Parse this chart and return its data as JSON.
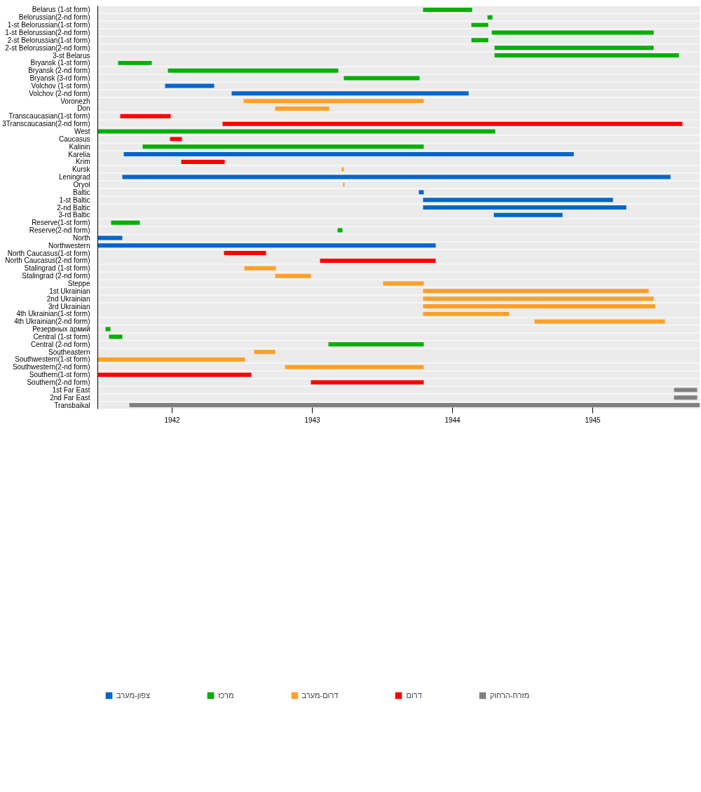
{
  "chart_data": {
    "type": "bar",
    "orientation": "horizontal",
    "grid": "y",
    "legend": "bottom left",
    "categories": [
      "Belarus (1-st form)",
      "Belorussian(2-nd form)",
      "1-st Belorussian(1-st form)",
      "1-st Belorussian(2-nd form)",
      "2-st Belorussian(1-st form)",
      "2-st Belorussian(2-nd form)",
      "3-st Belarus",
      "Bryansk (1-st form)",
      "Bryansk (2-nd form)",
      "Bryansk (3-rd form)",
      "Volchov (1-st form)",
      "Volchov (2-nd form)",
      "Voronezh",
      "Don",
      "Transcaucasian(1-st form)",
      "3Transcaucasian(2-nd form)",
      "West",
      "Caucasus",
      "Kalinin",
      "Karelia",
      "Krim",
      "Kursk",
      "Leningrad",
      "Oryol",
      "Baltic",
      "1-st Baltic",
      "2-nd Baltic",
      "3-rd Baltic",
      "Reserve(1-st form)",
      "Reserve(2-nd form)",
      "North",
      "Northwestern",
      "North Caucasus(1-st form)",
      "North Caucasus(2-nd form)",
      "Stalingrad (1-st form)",
      "Stalingrad (2-nd form)",
      "Steppe",
      "1st Ukrainian",
      "2nd Ukrainian",
      "3rd Ukrainian",
      "4th Ukrainian(1-st form)",
      "4th Ukrainian(2-nd form)",
      "Резервных армий",
      "Central (1-st form)",
      "Central (2-nd form)",
      "Southeastern",
      "Southwestern(1-st form)",
      "Southwestern(2-nd form)",
      "Southern(1-st form)",
      "Southern(2-nd form)",
      "1st Far East",
      "2nd Far East",
      "Transbaikal"
    ],
    "xlim": [
      1941.47,
      1945.765
    ],
    "xticks": [
      1942,
      1943,
      1944,
      1945
    ],
    "series": [
      {
        "name": "צפון-מערב",
        "color": "#0066cc",
        "values": [
          null,
          null,
          null,
          null,
          null,
          null,
          null,
          null,
          null,
          null,
          0.35,
          1.69,
          null,
          null,
          null,
          null,
          null,
          null,
          null,
          3.21,
          null,
          null,
          3.91,
          null,
          0.035,
          1.355,
          1.45,
          0.49,
          null,
          null,
          0.175,
          2.41,
          null,
          null,
          null,
          null,
          null,
          null,
          null,
          null,
          null,
          null,
          null,
          null,
          null,
          null,
          null,
          null,
          null,
          null,
          null,
          null,
          null
        ],
        "base": [
          null,
          null,
          null,
          null,
          null,
          null,
          null,
          null,
          null,
          null,
          1941.95,
          1942.425,
          null,
          null,
          null,
          null,
          null,
          null,
          null,
          1941.655,
          null,
          null,
          1941.645,
          null,
          1943.76,
          1943.79,
          1943.79,
          1944.295,
          null,
          null,
          1941.47,
          1941.47,
          null,
          null,
          null,
          null,
          null,
          null,
          null,
          null,
          null,
          null,
          null,
          null,
          null,
          null,
          null,
          null,
          null,
          null,
          null,
          null,
          null
        ]
      },
      {
        "name": "מרכז",
        "color": "#00b000",
        "values": [
          0.35,
          0.035,
          0.12,
          1.155,
          0.12,
          1.135,
          1.315,
          0.24,
          1.215,
          0.54,
          null,
          null,
          null,
          null,
          null,
          null,
          2.835,
          null,
          2.005,
          null,
          null,
          null,
          null,
          null,
          null,
          null,
          null,
          null,
          0.205,
          0.035,
          null,
          null,
          null,
          null,
          null,
          null,
          null,
          null,
          null,
          null,
          null,
          null,
          0.035,
          0.095,
          0.68,
          null,
          null,
          null,
          null,
          null,
          null,
          null,
          null
        ],
        "base": [
          1943.79,
          1944.25,
          1944.135,
          1944.28,
          1944.135,
          1944.3,
          1944.3,
          1941.615,
          1941.97,
          1943.225,
          null,
          null,
          null,
          null,
          null,
          null,
          1941.47,
          null,
          1941.79,
          null,
          null,
          null,
          null,
          null,
          null,
          null,
          null,
          null,
          1941.565,
          1943.18,
          null,
          null,
          null,
          null,
          null,
          null,
          null,
          null,
          null,
          null,
          null,
          null,
          1941.525,
          1941.55,
          1943.115,
          null,
          null,
          null,
          null,
          null,
          null,
          null,
          null
        ]
      },
      {
        "name": "דרום-מערב",
        "color": "#ffa028",
        "values": [
          null,
          null,
          null,
          null,
          null,
          null,
          null,
          null,
          null,
          null,
          null,
          null,
          1.285,
          0.385,
          null,
          null,
          null,
          null,
          null,
          null,
          null,
          0.015,
          null,
          0.01,
          null,
          null,
          null,
          null,
          null,
          null,
          null,
          null,
          null,
          null,
          0.225,
          0.255,
          0.29,
          1.61,
          1.645,
          1.655,
          0.615,
          0.93,
          null,
          null,
          null,
          0.15,
          1.05,
          0.99,
          null,
          null,
          null,
          null,
          null
        ],
        "base": [
          null,
          null,
          null,
          null,
          null,
          null,
          null,
          null,
          null,
          null,
          null,
          null,
          1942.51,
          1942.735,
          null,
          null,
          null,
          null,
          null,
          null,
          null,
          1943.21,
          null,
          1943.22,
          null,
          null,
          null,
          null,
          null,
          null,
          null,
          null,
          null,
          null,
          1942.515,
          1942.735,
          1943.505,
          1943.79,
          1943.79,
          1943.79,
          1943.79,
          1944.585,
          null,
          null,
          null,
          1942.585,
          1941.47,
          1942.805,
          null,
          null,
          null,
          null,
          null
        ]
      },
      {
        "name": "דרום",
        "color": "#ff0000",
        "values": [
          null,
          null,
          null,
          null,
          null,
          null,
          null,
          null,
          null,
          null,
          null,
          null,
          null,
          null,
          0.36,
          3.28,
          null,
          0.085,
          null,
          null,
          0.31,
          null,
          null,
          null,
          null,
          null,
          null,
          null,
          null,
          null,
          null,
          null,
          0.3,
          0.825,
          null,
          null,
          null,
          null,
          null,
          null,
          null,
          null,
          null,
          null,
          null,
          null,
          null,
          null,
          1.095,
          0.805,
          null,
          null,
          null
        ],
        "base": [
          null,
          null,
          null,
          null,
          null,
          null,
          null,
          null,
          null,
          null,
          null,
          null,
          null,
          null,
          1941.63,
          1942.36,
          null,
          1941.985,
          null,
          null,
          1942.065,
          null,
          null,
          null,
          null,
          null,
          null,
          null,
          null,
          null,
          null,
          null,
          1942.37,
          1943.055,
          null,
          null,
          null,
          null,
          null,
          null,
          null,
          null,
          null,
          null,
          null,
          null,
          null,
          null,
          1941.47,
          1942.99,
          null,
          null,
          null
        ]
      },
      {
        "name": "מזרח-הרחוק",
        "color": "#808080",
        "values": [
          null,
          null,
          null,
          null,
          null,
          null,
          null,
          null,
          null,
          null,
          null,
          null,
          null,
          null,
          null,
          null,
          null,
          null,
          null,
          null,
          null,
          null,
          null,
          null,
          null,
          null,
          null,
          null,
          null,
          null,
          null,
          null,
          null,
          null,
          null,
          null,
          null,
          null,
          null,
          null,
          null,
          null,
          null,
          null,
          null,
          null,
          null,
          null,
          null,
          null,
          0.165,
          0.165,
          4.07
        ],
        "base": [
          null,
          null,
          null,
          null,
          null,
          null,
          null,
          null,
          null,
          null,
          null,
          null,
          null,
          null,
          null,
          null,
          null,
          null,
          null,
          null,
          null,
          null,
          null,
          null,
          null,
          null,
          null,
          null,
          null,
          null,
          null,
          null,
          null,
          null,
          null,
          null,
          null,
          null,
          null,
          null,
          null,
          null,
          null,
          null,
          null,
          null,
          null,
          null,
          null,
          null,
          1945.58,
          1945.58,
          1941.695
        ]
      }
    ]
  }
}
